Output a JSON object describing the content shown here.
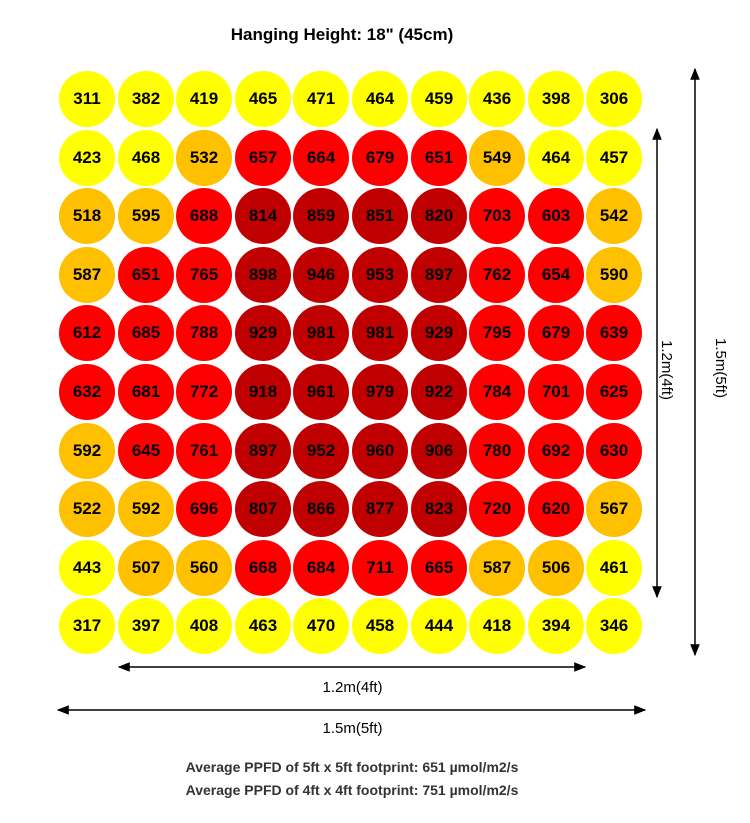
{
  "title": "Hanging Height: 18\" (45cm)",
  "chart_data": {
    "type": "heatmap",
    "title": "Hanging Height: 18\" (45cm)",
    "rows": [
      [
        311,
        382,
        419,
        465,
        471,
        464,
        459,
        436,
        398,
        306
      ],
      [
        423,
        468,
        532,
        657,
        664,
        679,
        651,
        549,
        464,
        457
      ],
      [
        518,
        595,
        688,
        814,
        859,
        851,
        820,
        703,
        603,
        542
      ],
      [
        587,
        651,
        765,
        898,
        946,
        953,
        897,
        762,
        654,
        590
      ],
      [
        612,
        685,
        788,
        929,
        981,
        981,
        929,
        795,
        679,
        639
      ],
      [
        632,
        681,
        772,
        918,
        961,
        979,
        922,
        784,
        701,
        625
      ],
      [
        592,
        645,
        761,
        897,
        952,
        960,
        906,
        780,
        692,
        630
      ],
      [
        522,
        592,
        696,
        807,
        866,
        877,
        823,
        720,
        620,
        567
      ],
      [
        443,
        507,
        560,
        668,
        684,
        711,
        665,
        587,
        506,
        461
      ],
      [
        317,
        397,
        408,
        463,
        470,
        458,
        444,
        418,
        394,
        346
      ]
    ],
    "color_bands": [
      {
        "max": 500,
        "color": "#ffff00"
      },
      {
        "max": 600,
        "color": "#ffc000"
      },
      {
        "max": 800,
        "color": "#ff0000"
      },
      {
        "max": 1000,
        "color": "#c00000"
      }
    ]
  },
  "dimensions": {
    "inner_width": "1.2m(4ft)",
    "outer_width": "1.5m(5ft)",
    "inner_height": "1.2m(4ft)",
    "outer_height": "1.5m(5ft)"
  },
  "footer": {
    "line1": "Average PPFD of 5ft x 5ft footprint: 651 µmol/m2/s",
    "line2": "Average PPFD of 4ft x 4ft footprint: 751 µmol/m2/s"
  }
}
